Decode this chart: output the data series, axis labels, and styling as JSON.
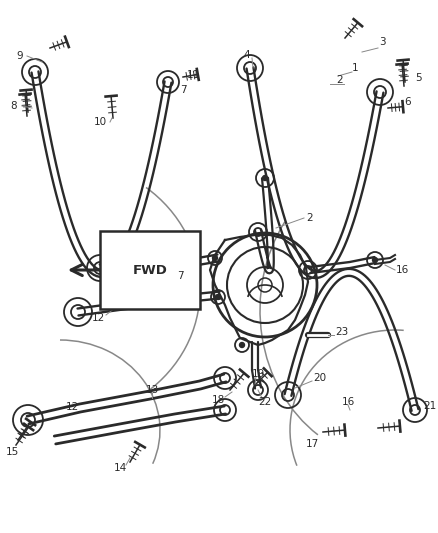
{
  "bg_color": "#ffffff",
  "lc": "#2a2a2a",
  "lc_gray": "#888888",
  "lc_light": "#aaaaaa",
  "figsize": [
    4.38,
    5.33
  ],
  "dpi": 100,
  "xlim": [
    0,
    438
  ],
  "ylim": [
    0,
    533
  ]
}
